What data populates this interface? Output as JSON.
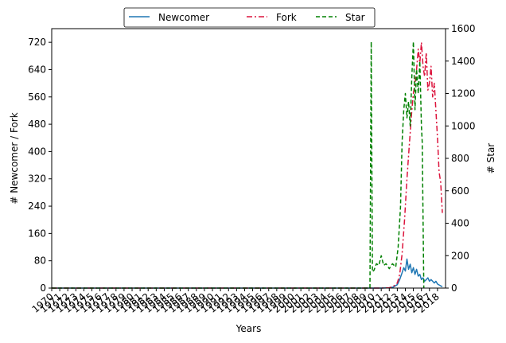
{
  "chart_data": {
    "type": "line",
    "title": "",
    "xlabel": "Years",
    "ylabel_left": "# Newcomer / Fork",
    "ylabel_right": "# Star",
    "xlim": [
      1970,
      2019
    ],
    "ylim_left": [
      0,
      760
    ],
    "ylim_right": [
      0,
      1600
    ],
    "yticks_left": [
      0,
      80,
      160,
      240,
      320,
      400,
      480,
      560,
      640,
      720
    ],
    "yticks_right": [
      0,
      200,
      400,
      600,
      800,
      1000,
      1200,
      1400,
      1600
    ],
    "xtick_labels": [
      "1970",
      "1971",
      "1972",
      "1973",
      "1974",
      "1975",
      "1976",
      "1977",
      "1978",
      "1979",
      "1980",
      "1981",
      "1982",
      "1983",
      "1984",
      "1985",
      "1986",
      "1987",
      "1988",
      "1989",
      "1990",
      "1991",
      "1992",
      "1993",
      "1994",
      "1995",
      "1996",
      "1997",
      "1998",
      "1999",
      "2000",
      "2001",
      "2002",
      "2003",
      "2004",
      "2005",
      "2006",
      "2007",
      "2008",
      "2009",
      "2010",
      "2011",
      "2012",
      "2013",
      "2014",
      "2015",
      "2016",
      "2017",
      "2018"
    ],
    "legend_position": "top-center",
    "grid": false,
    "series": [
      {
        "name": "Newcomer",
        "axis": "left",
        "color": "#1f77b4",
        "style": "solid",
        "x": [
          1970,
          2011.0,
          2012.0,
          2012.5,
          2013.0,
          2013.3,
          2013.6,
          2013.8,
          2014.0,
          2014.2,
          2014.4,
          2014.6,
          2014.8,
          2015.0,
          2015.2,
          2015.4,
          2015.6,
          2015.8,
          2016.0,
          2016.2,
          2016.4,
          2016.6,
          2016.8,
          2017.0,
          2017.2,
          2017.4,
          2017.6,
          2017.8,
          2018.0,
          2018.3,
          2018.6
        ],
        "y": [
          0,
          0,
          1,
          3,
          10,
          25,
          45,
          60,
          50,
          85,
          55,
          70,
          45,
          60,
          40,
          55,
          35,
          40,
          25,
          30,
          20,
          25,
          30,
          20,
          25,
          20,
          15,
          20,
          12,
          8,
          4
        ]
      },
      {
        "name": "Fork",
        "axis": "left",
        "color": "#dc143c",
        "style": "dashdot",
        "x": [
          1970,
          2011.0,
          2012.0,
          2012.5,
          2013.0,
          2013.3,
          2013.6,
          2013.9,
          2014.2,
          2014.5,
          2014.8,
          2015.0,
          2015.2,
          2015.4,
          2015.6,
          2015.8,
          2016.0,
          2016.2,
          2016.4,
          2016.6,
          2016.8,
          2017.0,
          2017.2,
          2017.4,
          2017.6,
          2017.8,
          2018.0,
          2018.2,
          2018.4,
          2018.6
        ],
        "y": [
          0,
          0,
          1,
          5,
          15,
          40,
          100,
          200,
          320,
          420,
          520,
          570,
          600,
          640,
          700,
          660,
          720,
          650,
          620,
          690,
          580,
          600,
          650,
          560,
          600,
          520,
          440,
          340,
          310,
          220
        ]
      },
      {
        "name": "Star",
        "axis": "right",
        "color": "#008000",
        "style": "dashed",
        "x": [
          1970,
          2009.6,
          2009.75,
          2009.9,
          2010.1,
          2010.4,
          2010.7,
          2011.0,
          2011.3,
          2011.6,
          2012.0,
          2012.4,
          2012.8,
          2013.1,
          2013.4,
          2013.6,
          2013.8,
          2014.0,
          2014.2,
          2014.4,
          2014.6,
          2014.8,
          2015.0,
          2015.2,
          2015.4,
          2015.6,
          2015.8,
          2016.0,
          2016.1,
          2016.2,
          2016.3
        ],
        "y": [
          0,
          0,
          1520,
          100,
          110,
          150,
          140,
          200,
          140,
          150,
          120,
          150,
          130,
          250,
          500,
          900,
          1100,
          1200,
          1050,
          1150,
          1000,
          1300,
          1520,
          1100,
          1350,
          1200,
          1400,
          1000,
          900,
          450,
          0
        ]
      }
    ]
  }
}
